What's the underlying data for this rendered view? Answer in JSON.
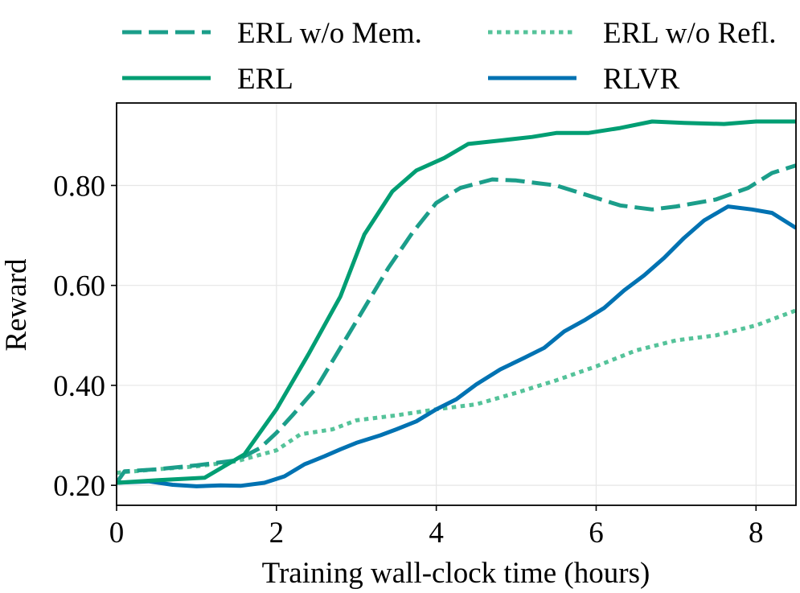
{
  "chart_data": {
    "type": "line",
    "title": "",
    "xlabel": "Training wall-clock time (hours)",
    "ylabel": "Reward",
    "xlim": [
      0,
      8.5
    ],
    "ylim": [
      0.16,
      0.965
    ],
    "xticks": [
      0,
      2,
      4,
      6,
      8
    ],
    "xtick_labels": [
      "0",
      "2",
      "4",
      "6",
      "8"
    ],
    "yticks": [
      0.2,
      0.4,
      0.6,
      0.8
    ],
    "ytick_labels": [
      "0.20",
      "0.40",
      "0.60",
      "0.80"
    ],
    "grid": true,
    "legend_position": "top",
    "series": [
      {
        "name": "ERL w/o Mem.",
        "color": "#1b9e8a",
        "style": "dashed",
        "x": [
          0,
          0.1,
          0.5,
          1.0,
          1.5,
          1.8,
          2.0,
          2.2,
          2.5,
          2.8,
          3.1,
          3.4,
          3.7,
          4.0,
          4.3,
          4.7,
          5.0,
          5.5,
          6.0,
          6.3,
          6.7,
          7.0,
          7.5,
          7.9,
          8.2,
          8.5
        ],
        "y": [
          0.205,
          0.228,
          0.232,
          0.24,
          0.25,
          0.275,
          0.305,
          0.34,
          0.395,
          0.475,
          0.555,
          0.635,
          0.705,
          0.765,
          0.795,
          0.812,
          0.81,
          0.8,
          0.775,
          0.76,
          0.752,
          0.758,
          0.772,
          0.795,
          0.825,
          0.84
        ]
      },
      {
        "name": "ERL w/o Refl.",
        "color": "#55c39a",
        "style": "dotted",
        "x": [
          0,
          0.5,
          1.0,
          1.5,
          2.0,
          2.3,
          2.7,
          3.0,
          3.5,
          4.0,
          4.5,
          5.0,
          5.5,
          6.0,
          6.5,
          7.0,
          7.5,
          8.0,
          8.5
        ],
        "y": [
          0.225,
          0.232,
          0.238,
          0.248,
          0.27,
          0.302,
          0.312,
          0.33,
          0.34,
          0.352,
          0.362,
          0.385,
          0.41,
          0.438,
          0.47,
          0.49,
          0.5,
          0.52,
          0.55
        ]
      },
      {
        "name": "ERL",
        "color": "#009e73",
        "style": "solid",
        "x": [
          0,
          0.5,
          1.1,
          1.6,
          2.0,
          2.4,
          2.8,
          3.1,
          3.45,
          3.75,
          4.1,
          4.4,
          4.8,
          5.2,
          5.5,
          5.9,
          6.3,
          6.7,
          7.1,
          7.6,
          8.0,
          8.5
        ],
        "y": [
          0.205,
          0.21,
          0.215,
          0.262,
          0.352,
          0.462,
          0.578,
          0.702,
          0.788,
          0.83,
          0.855,
          0.883,
          0.89,
          0.897,
          0.905,
          0.905,
          0.915,
          0.928,
          0.925,
          0.923,
          0.928,
          0.928
        ]
      },
      {
        "name": "RLVR",
        "color": "#0072b2",
        "style": "solid",
        "x": [
          0,
          0.4,
          0.7,
          1.0,
          1.3,
          1.55,
          1.85,
          2.1,
          2.35,
          2.6,
          2.8,
          3.0,
          3.3,
          3.5,
          3.75,
          4.0,
          4.25,
          4.5,
          4.8,
          5.1,
          5.35,
          5.6,
          5.85,
          6.1,
          6.35,
          6.6,
          6.85,
          7.1,
          7.35,
          7.65,
          7.95,
          8.2,
          8.5
        ],
        "y": [
          0.205,
          0.208,
          0.201,
          0.198,
          0.2,
          0.199,
          0.205,
          0.218,
          0.242,
          0.258,
          0.272,
          0.285,
          0.3,
          0.312,
          0.328,
          0.352,
          0.372,
          0.402,
          0.432,
          0.455,
          0.475,
          0.508,
          0.53,
          0.555,
          0.59,
          0.62,
          0.655,
          0.695,
          0.73,
          0.758,
          0.752,
          0.745,
          0.715
        ]
      }
    ]
  }
}
